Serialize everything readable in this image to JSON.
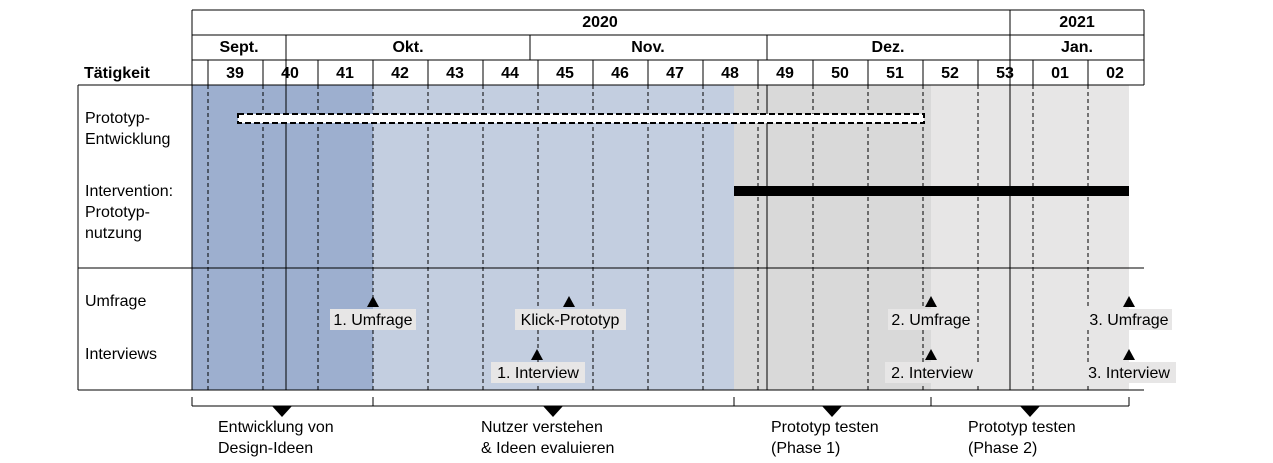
{
  "header": {
    "years": [
      "2020",
      "2021"
    ],
    "months": [
      "Sept.",
      "Okt.",
      "Nov.",
      "Dez.",
      "Jan."
    ],
    "activity_label": "Tätigkeit",
    "weeks": [
      "39",
      "40",
      "41",
      "42",
      "43",
      "44",
      "45",
      "46",
      "47",
      "48",
      "49",
      "50",
      "51",
      "52",
      "53",
      "01",
      "02"
    ]
  },
  "rows": {
    "prototyp_entwicklung": "Prototyp-\nEntwicklung",
    "intervention": "Intervention:\nPrototyp-\nnutzung",
    "umfrage": "Umfrage",
    "interviews": "Interviews"
  },
  "milestones": {
    "umfrage_1": "1. Umfrage",
    "klick_prototyp": "Klick-Prototyp",
    "umfrage_2": "2. Umfrage",
    "umfrage_3": "3. Umfrage",
    "interview_1": "1. Interview",
    "interview_2": "2. Interview",
    "interview_3": "3. Interview"
  },
  "phases": [
    "Entwicklung von\nDesign-Ideen",
    "Nutzer verstehen\n& Ideen evaluieren",
    "Prototyp testen\n(Phase 1)",
    "Prototyp testen\n(Phase 2)"
  ],
  "colors": {
    "phase1": "#9dafcf",
    "phase2": "#c3cee0",
    "phase3": "#d9d9d9",
    "phase4": "#e7e6e6",
    "label_bg": "#e7e6e6"
  }
}
